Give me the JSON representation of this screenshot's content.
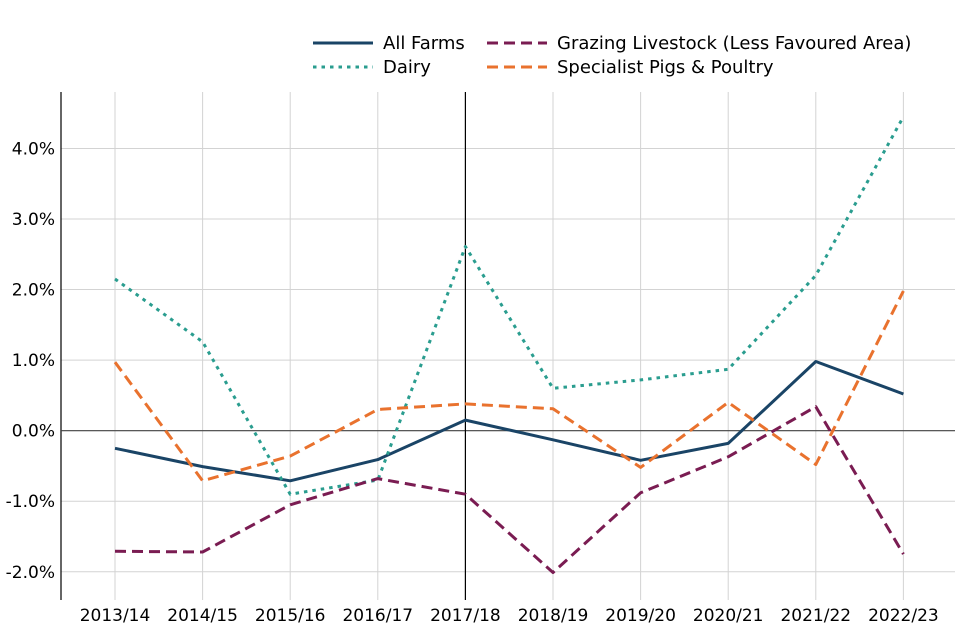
{
  "chart_data": {
    "type": "line",
    "categories": [
      "2013/14",
      "2014/15",
      "2015/16",
      "2016/17",
      "2017/18",
      "2018/19",
      "2019/20",
      "2020/21",
      "2021/22",
      "2022/23"
    ],
    "ylim": [
      -2.4,
      4.8
    ],
    "yticks": [
      -2,
      -1,
      0,
      1,
      2,
      3,
      4
    ],
    "ytick_labels": [
      "-2.0%",
      "-1.0%",
      "0.0%",
      "1.0%",
      "2.0%",
      "3.0%",
      "4.0%"
    ],
    "grid": true,
    "legend_position": "top-right",
    "reference_line_category": "2017/18",
    "series": [
      {
        "name": "All Farms",
        "color": "#1a4466",
        "dash": "solid",
        "values": [
          -0.25,
          -0.51,
          -0.71,
          -0.41,
          0.15,
          -0.13,
          -0.42,
          -0.18,
          0.98,
          0.52
        ]
      },
      {
        "name": "Dairy",
        "color": "#2a9d8f",
        "dash": "dotted",
        "values": [
          2.15,
          1.26,
          -0.9,
          -0.7,
          2.61,
          0.6,
          0.72,
          0.87,
          2.2,
          4.45
        ]
      },
      {
        "name": "Grazing Livestock (Less Favoured Area)",
        "color": "#7a1c52",
        "dash": "dashed",
        "values": [
          -1.71,
          -1.72,
          -1.05,
          -0.68,
          -0.9,
          -2.01,
          -0.88,
          -0.37,
          0.34,
          -1.75
        ]
      },
      {
        "name": "Specialist Pigs & Poultry",
        "color": "#e9722e",
        "dash": "dashed",
        "values": [
          0.97,
          -0.71,
          -0.36,
          0.3,
          0.38,
          0.31,
          -0.52,
          0.4,
          -0.48,
          1.98
        ]
      }
    ]
  }
}
